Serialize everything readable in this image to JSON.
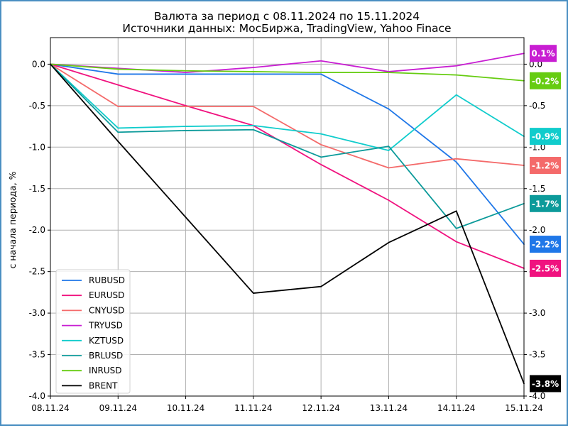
{
  "chart_data": {
    "type": "line",
    "title": "Валюта за период с 08.11.2024 по 15.11.2024",
    "subtitle": "Источники данных: МосБиржа, TradingView, Yahoo Finace",
    "xlabel": "",
    "ylabel": "с начала периода, %",
    "categories": [
      "08.11.24",
      "09.11.24",
      "10.11.24",
      "11.11.24",
      "12.11.24",
      "13.11.24",
      "14.11.24",
      "15.11.24"
    ],
    "ylim": [
      -4.0,
      0.32
    ],
    "yticks": [
      "0.0",
      "-0.5",
      "-1.0",
      "-1.5",
      "-2.0",
      "-2.5",
      "-3.0",
      "-3.5",
      "-4.0"
    ],
    "grid": true,
    "legend_position": "bottom-left",
    "series": [
      {
        "name": "RUBUSD",
        "color": "#1f77e8",
        "x": [
          0,
          1,
          2,
          3,
          4,
          5,
          6,
          7
        ],
        "values": [
          0,
          -0.12,
          -0.12,
          -0.12,
          -0.12,
          -0.54,
          -1.18,
          -2.17
        ],
        "badge": "-2.2%"
      },
      {
        "name": "EURUSD",
        "color": "#f0127f",
        "x": [
          0,
          1,
          2,
          3,
          4,
          5,
          6,
          7
        ],
        "values": [
          0,
          -0.25,
          -0.5,
          -0.74,
          -1.21,
          -1.64,
          -2.14,
          -2.46
        ],
        "badge": "-2.5%"
      },
      {
        "name": "CNYUSD",
        "color": "#f46a6a",
        "x": [
          0,
          1,
          2,
          3,
          4,
          5,
          6,
          7
        ],
        "values": [
          0,
          -0.51,
          -0.51,
          -0.51,
          -0.97,
          -1.25,
          -1.14,
          -1.22
        ],
        "badge": "-1.2%"
      },
      {
        "name": "TRYUSD",
        "color": "#c81ed2",
        "x": [
          0,
          1,
          2,
          3,
          4,
          5,
          6,
          7
        ],
        "values": [
          0,
          -0.05,
          -0.1,
          -0.04,
          0.04,
          -0.09,
          -0.02,
          0.13
        ],
        "badge": "0.1%"
      },
      {
        "name": "KZTUSD",
        "color": "#10cccc",
        "x": [
          0,
          1,
          2,
          3,
          4,
          5,
          6,
          7
        ],
        "values": [
          0,
          -0.77,
          -0.75,
          -0.74,
          -0.84,
          -1.04,
          -0.37,
          -0.87
        ],
        "badge": "-0.9%"
      },
      {
        "name": "BRLUSD",
        "color": "#0c9a9a",
        "x": [
          0,
          1,
          2,
          3,
          4,
          5,
          6,
          7
        ],
        "values": [
          0,
          -0.82,
          -0.8,
          -0.79,
          -1.12,
          -0.99,
          -1.98,
          -1.68
        ],
        "badge": "-1.7%"
      },
      {
        "name": "INRUSD",
        "color": "#66cc11",
        "x": [
          0,
          1,
          2,
          3,
          4,
          5,
          6,
          7
        ],
        "values": [
          0,
          -0.06,
          -0.08,
          -0.09,
          -0.1,
          -0.1,
          -0.13,
          -0.2
        ],
        "badge": "-0.2%"
      },
      {
        "name": "BRENT",
        "color": "#000000",
        "x": [
          0,
          1,
          3,
          4,
          5,
          6,
          7
        ],
        "values": [
          0,
          -0.93,
          -2.76,
          -2.68,
          -2.15,
          -1.77,
          -3.85
        ],
        "badge": "-3.8%"
      }
    ]
  }
}
